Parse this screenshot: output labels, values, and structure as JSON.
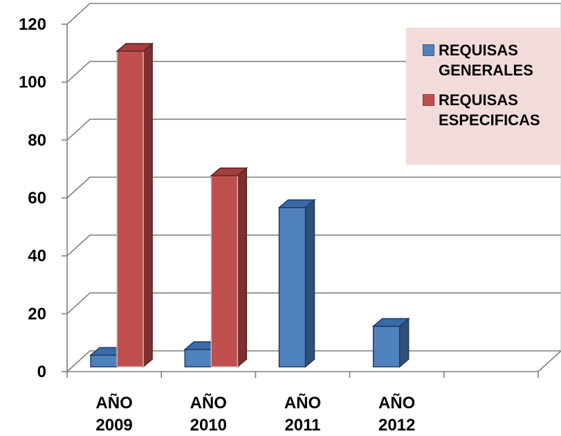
{
  "chart_data": {
    "type": "bar",
    "categories": [
      "AÑO 2009",
      "AÑO 2010",
      "AÑO 2011",
      "AÑO 2012"
    ],
    "category_lines": [
      [
        "AÑO",
        "2009"
      ],
      [
        "AÑO",
        "2010"
      ],
      [
        "AÑO",
        "2011"
      ],
      [
        "AÑO",
        "2012"
      ]
    ],
    "series": [
      {
        "name": "REQUISAS GENERALES",
        "name_lines": [
          "REQUISAS",
          "GENERALES"
        ],
        "values": [
          4,
          6,
          55,
          14
        ],
        "color": "#4f81bd",
        "side_color": "#2f4f7a",
        "top_color": "#3a6aa8"
      },
      {
        "name": "REQUISAS ESPECIFICAS",
        "name_lines": [
          "REQUISAS",
          "ESPECIFICAS"
        ],
        "values": [
          109,
          66,
          null,
          null
        ],
        "color": "#c0504d",
        "side_color": "#7f302e",
        "top_color": "#a33f3c"
      }
    ],
    "ylim": [
      0,
      120
    ],
    "yticks": [
      0,
      20,
      40,
      60,
      80,
      100,
      120
    ],
    "grid": true,
    "legend_position": "top-right",
    "three_d": true
  }
}
